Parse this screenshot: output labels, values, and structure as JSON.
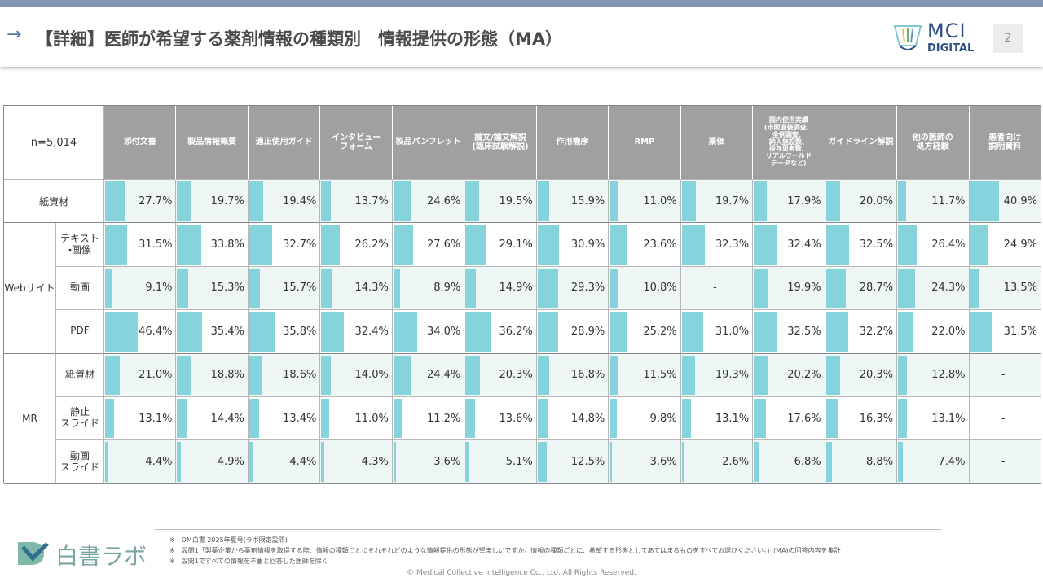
{
  "header": {
    "title": "【詳細】医師が希望する薬剤情報の種類別　情報提供の形態（MA）",
    "logo_top": "MCI",
    "logo_bottom": "DIGITAL",
    "page": "2"
  },
  "table": {
    "corner": "n=5,014",
    "columns": [
      "添付文書",
      "製品情報概要",
      "適正使用ガイド",
      "インタビュー\nフォーム",
      "製品パンフレット",
      "論文/論文解説\n(臨床試験解説)",
      "作用機序",
      "RMP",
      "薬価",
      "国内使用実績\n(市販直後調査、\n全例調査、\n納入施設数、\n投与患者数、\nリアルワールド\nデータなど)",
      "ガイドライン解説",
      "他の医師の\n処方経験",
      "患者向け\n説明資料"
    ],
    "groups": [
      {
        "label": "紙資材",
        "rows": [
          {
            "values": [
              27.7,
              19.7,
              19.4,
              13.7,
              24.6,
              19.5,
              15.9,
              11.0,
              19.7,
              17.9,
              20.0,
              11.7,
              40.9
            ],
            "value_labels": [
              "27.7%",
              "19.7%",
              "19.4%",
              "13.7%",
              "24.6%",
              "19.5%",
              "15.9%",
              "11.0%",
              "19.7%",
              "17.9%",
              "20.0%",
              "11.7%",
              "40.9%"
            ]
          }
        ]
      },
      {
        "label": "Webサイト",
        "rows": [
          {
            "label": "テキスト\n・画像",
            "values": [
              31.5,
              33.8,
              32.7,
              26.2,
              27.6,
              29.1,
              30.9,
              23.6,
              32.3,
              32.4,
              32.5,
              26.4,
              24.9
            ],
            "value_labels": [
              "31.5%",
              "33.8%",
              "32.7%",
              "26.2%",
              "27.6%",
              "29.1%",
              "30.9%",
              "23.6%",
              "32.3%",
              "32.4%",
              "32.5%",
              "26.4%",
              "24.9%"
            ]
          },
          {
            "label": "動画",
            "values": [
              9.1,
              15.3,
              15.7,
              14.3,
              8.9,
              14.9,
              29.3,
              10.8,
              null,
              19.9,
              28.7,
              24.3,
              13.5
            ],
            "value_labels": [
              "9.1%",
              "15.3%",
              "15.7%",
              "14.3%",
              "8.9%",
              "14.9%",
              "29.3%",
              "10.8%",
              "-",
              "19.9%",
              "28.7%",
              "24.3%",
              "13.5%"
            ]
          },
          {
            "label": "PDF",
            "values": [
              46.4,
              35.4,
              35.8,
              32.4,
              34.0,
              36.2,
              28.9,
              25.2,
              31.0,
              32.5,
              32.2,
              22.0,
              31.5
            ],
            "value_labels": [
              "46.4%",
              "35.4%",
              "35.8%",
              "32.4%",
              "34.0%",
              "36.2%",
              "28.9%",
              "25.2%",
              "31.0%",
              "32.5%",
              "32.2%",
              "22.0%",
              "31.5%"
            ]
          }
        ]
      },
      {
        "label": "MR",
        "rows": [
          {
            "label": "紙資材",
            "values": [
              21.0,
              18.8,
              18.6,
              14.0,
              24.4,
              20.3,
              16.8,
              11.5,
              19.3,
              20.2,
              20.3,
              12.8,
              null
            ],
            "value_labels": [
              "21.0%",
              "18.8%",
              "18.6%",
              "14.0%",
              "24.4%",
              "20.3%",
              "16.8%",
              "11.5%",
              "19.3%",
              "20.2%",
              "20.3%",
              "12.8%",
              "-"
            ]
          },
          {
            "label": "静止\nスライド",
            "values": [
              13.1,
              14.4,
              13.4,
              11.0,
              11.2,
              13.6,
              14.8,
              9.8,
              13.1,
              17.6,
              16.3,
              13.1,
              null
            ],
            "value_labels": [
              "13.1%",
              "14.4%",
              "13.4%",
              "11.0%",
              "11.2%",
              "13.6%",
              "14.8%",
              "9.8%",
              "13.1%",
              "17.6%",
              "16.3%",
              "13.1%",
              "-"
            ]
          },
          {
            "label": "動画\nスライド",
            "values": [
              4.4,
              4.9,
              4.4,
              4.3,
              3.6,
              5.1,
              12.5,
              3.6,
              2.6,
              6.8,
              8.8,
              7.4,
              null
            ],
            "value_labels": [
              "4.4%",
              "4.9%",
              "4.4%",
              "4.3%",
              "3.6%",
              "5.1%",
              "12.5%",
              "3.6%",
              "2.6%",
              "6.8%",
              "8.8%",
              "7.4%",
              "-"
            ]
          }
        ]
      }
    ]
  },
  "footer": {
    "notes": [
      "※　DM白書 2025年夏号(ラボ限定設問)",
      "※　設問1「製薬企業から薬剤情報を取得する際、情報の種類ごとにそれぞれどのような情報提供の形態が望ましいですか。情報の種類ごとに、希望する形態としてあてはまるものをすべてお選びください。」(MA)の回答内容を集計",
      "※　設問1ですべての情報を不要と回答した医師を除く"
    ],
    "logo": "白書ラボ",
    "copyright": "©  Medical Collective Intelligence Co., Ltd.  All Rights Reserved."
  }
}
